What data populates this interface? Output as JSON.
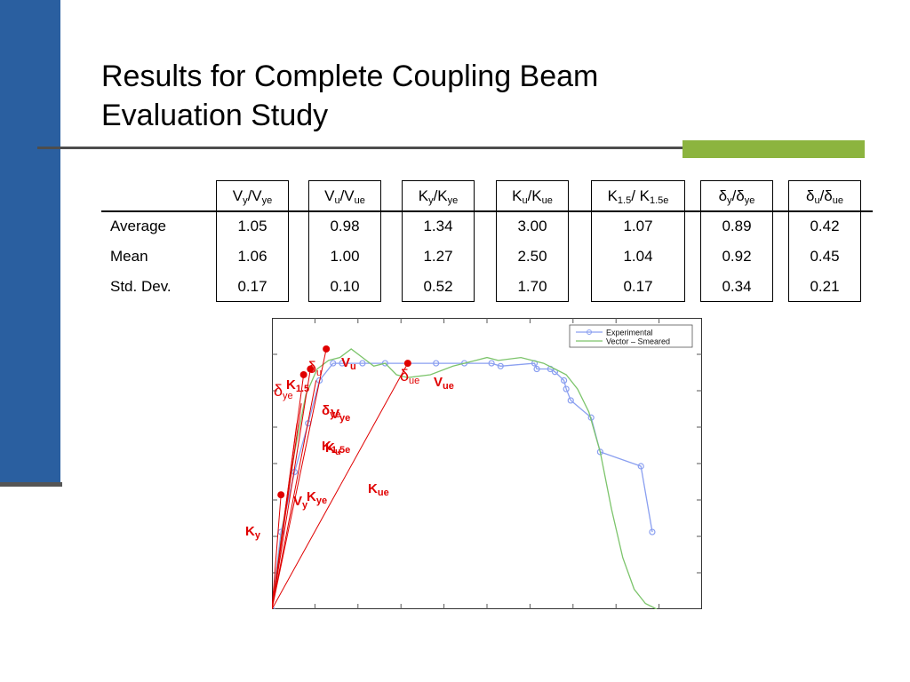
{
  "slide": {
    "title_line1": "Results for Complete Coupling Beam",
    "title_line2": "Evaluation Study"
  },
  "table": {
    "columns": [
      {
        "main": "V",
        "sub1": "y",
        "sep": "/V",
        "sub2": "ye"
      },
      {
        "main": "V",
        "sub1": "u",
        "sep": "/V",
        "sub2": "ue"
      },
      {
        "main": "K",
        "sub1": "y",
        "sep": "/K",
        "sub2": "ye"
      },
      {
        "main": "K",
        "sub1": "u",
        "sep": "/K",
        "sub2": "ue"
      },
      {
        "main": "K",
        "sub1": "1.5",
        "sep": "/ K",
        "sub2": "1.5e"
      },
      {
        "main": "δ",
        "sub1": "y",
        "sep": "/δ",
        "sub2": "ye"
      },
      {
        "main": "δ",
        "sub1": "u",
        "sep": "/δ",
        "sub2": "ue"
      }
    ],
    "rows": [
      {
        "label": "Average",
        "values": [
          "1.05",
          "0.98",
          "1.34",
          "3.00",
          "1.07",
          "0.89",
          "0.42"
        ]
      },
      {
        "label": "Mean",
        "values": [
          "1.06",
          "1.00",
          "1.27",
          "2.50",
          "1.04",
          "0.92",
          "0.45"
        ]
      },
      {
        "label": "Std. Dev.",
        "values": [
          "0.17",
          "0.10",
          "0.52",
          "1.70",
          "0.17",
          "0.34",
          "0.21"
        ]
      }
    ]
  },
  "chart_data": {
    "type": "line",
    "title": "",
    "xlabel": "",
    "ylabel": "",
    "grid": true,
    "legend_position": "top-right",
    "series": [
      {
        "name": "Experimental",
        "color": "#8a9ff0",
        "marker": "circle",
        "x": [
          0,
          0.8,
          2.0,
          3.2,
          4.2,
          5.4,
          6.2,
          8.0,
          10.0,
          12.0,
          14.5,
          17.0,
          19.4,
          20.2,
          23.2,
          23.4,
          24.6,
          25.0,
          25.8,
          26.0,
          26.4,
          28.2,
          29.0,
          32.6,
          33.6
        ],
        "y": [
          0,
          27,
          48,
          65,
          80,
          86,
          86,
          86,
          86,
          86,
          86,
          86,
          86,
          85,
          86,
          84,
          84,
          83,
          80,
          77,
          73,
          67,
          55,
          50,
          27
        ]
      },
      {
        "name": "Vector – Smeared",
        "color": "#7cc46b",
        "marker": "none",
        "x": [
          0,
          1.0,
          2.0,
          3.0,
          4.0,
          5.0,
          6.0,
          7.0,
          8.0,
          9.0,
          10.0,
          11.0,
          12.0,
          14.0,
          16.0,
          18.0,
          19.0,
          20.0,
          22.0,
          24.0,
          25.0,
          26.0,
          27.0,
          28.0,
          29.0,
          30.0,
          31.0,
          32.0,
          33.0,
          34.0
        ],
        "y": [
          0,
          30,
          55,
          75,
          84,
          87,
          88,
          91,
          88,
          85,
          86,
          82,
          81,
          82,
          85,
          87,
          88,
          87,
          88,
          86,
          84,
          82,
          77,
          69,
          55,
          35,
          18,
          7,
          2,
          0
        ]
      }
    ],
    "points": [
      {
        "label": "V",
        "sub": "u",
        "x": 4.8,
        "y": 91
      },
      {
        "label": "V",
        "sub": "ue",
        "x": 12.0,
        "y": 86
      },
      {
        "label": "δ",
        "sub": "ye",
        "x": 2.8,
        "y": 82
      },
      {
        "label": "K",
        "sub": "1.5",
        "x": 3.4,
        "y": 84
      },
      {
        "label": "",
        "sub": "",
        "x": 0.8,
        "y": 40
      }
    ],
    "annotations": [
      {
        "text": "δ",
        "sub": "u"
      },
      {
        "text": "V",
        "sub": "u"
      },
      {
        "text": "δ",
        "sub": "ue"
      },
      {
        "text": "V",
        "sub": "ue"
      },
      {
        "text": "δ",
        "sub": "ye"
      },
      {
        "text": "K",
        "sub": "1.5"
      },
      {
        "text": "δ",
        "sub": "ye"
      },
      {
        "text": "V",
        "sub": "ye"
      },
      {
        "text": "K",
        "sub": "1.5e"
      },
      {
        "text": "K",
        "sub": "u"
      },
      {
        "text": "K",
        "sub": "ue"
      },
      {
        "text": "V",
        "sub": "y"
      },
      {
        "text": "K",
        "sub": "ye"
      },
      {
        "text": "K",
        "sub": "y"
      }
    ],
    "marker_color": "#e00000"
  }
}
